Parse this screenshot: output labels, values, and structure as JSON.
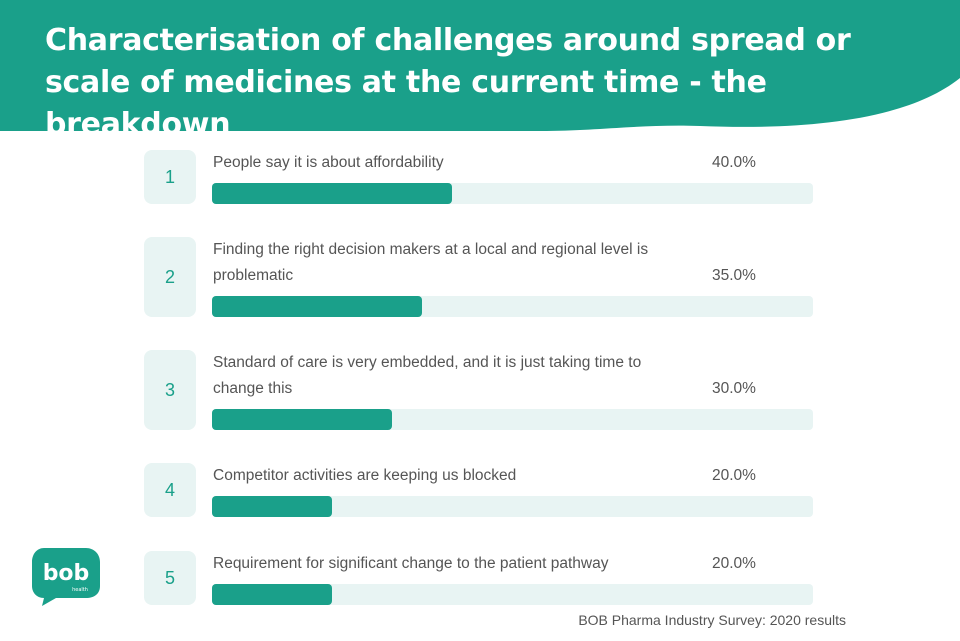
{
  "title": "Characterisation of challenges around spread or scale of medicines at the current time - the breakdown",
  "colors": {
    "teal": "#1aa08a",
    "track": "#e8f4f3",
    "text": "#555555"
  },
  "chart_data": {
    "type": "bar",
    "orientation": "horizontal",
    "title": "Characterisation of challenges around spread or scale of medicines at the current time - the breakdown",
    "ylim": [
      0,
      100
    ],
    "categories": [
      "People say it is about affordability",
      "Finding the right decision makers at a local and regional level is problematic",
      "Standard of care is very embedded, and it is just taking time to change this",
      "Competitor activities are keeping us blocked",
      "Requirement for significant change to the patient pathway"
    ],
    "values": [
      40.0,
      35.0,
      30.0,
      20.0,
      20.0
    ],
    "ranks": [
      "1",
      "2",
      "3",
      "4",
      "5"
    ],
    "value_labels": [
      "40.0%",
      "35.0%",
      "30.0%",
      "20.0%",
      "20.0%"
    ]
  },
  "logo": {
    "text": "bob",
    "subtext": "health",
    "icon": "speech-bubble-logo"
  },
  "source": "BOB Pharma Industry Survey: 2020 results"
}
